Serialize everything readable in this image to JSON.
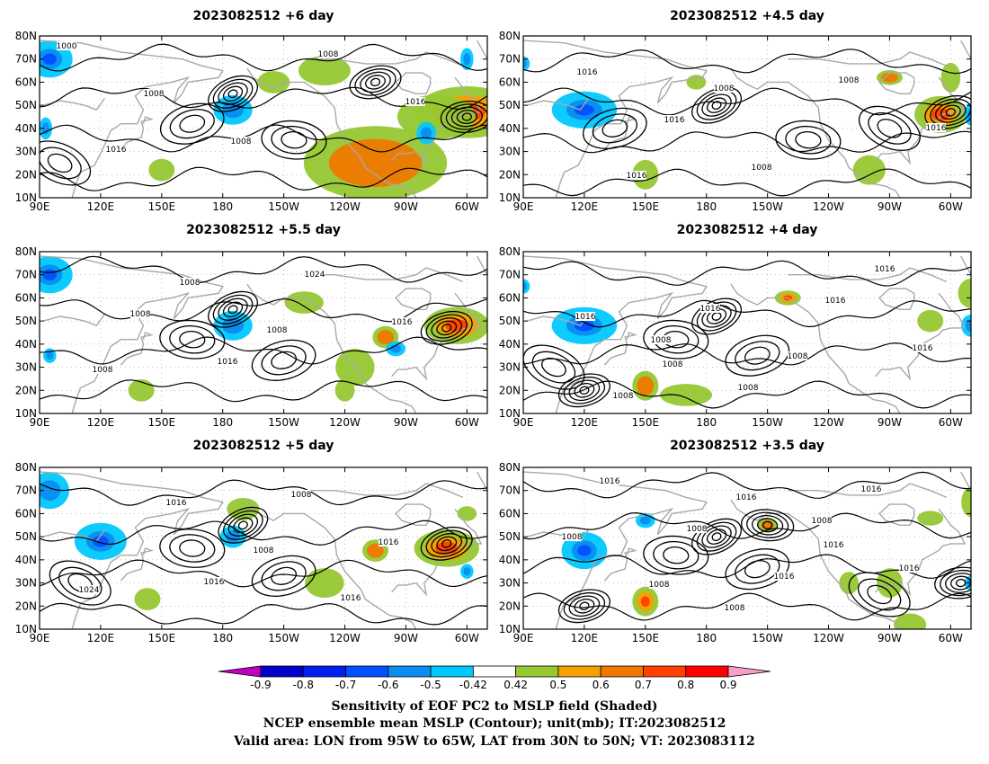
{
  "panels": [
    {
      "title": "2023082512 +6 day",
      "contour_labels": [
        "1000",
        "1008",
        "1008",
        "1008",
        "1016",
        "1016"
      ],
      "warm": [
        [
          -60,
          47,
          16,
          7
        ],
        [
          -105,
          25,
          22,
          10
        ],
        [
          -75,
          45,
          12,
          6
        ],
        [
          -130,
          65,
          8,
          4
        ],
        [
          -155,
          60,
          5,
          3
        ],
        [
          150,
          22,
          4,
          3
        ]
      ],
      "cold": [
        [
          95,
          70,
          7,
          5
        ],
        [
          -175,
          48,
          6,
          4
        ],
        [
          -80,
          38,
          3,
          3
        ],
        [
          -60,
          70,
          2,
          3
        ],
        [
          93,
          40,
          2,
          3
        ]
      ],
      "highs": [
        [
          165,
          42
        ],
        [
          -145,
          35
        ],
        [
          100,
          25
        ]
      ],
      "lows": [
        [
          -175,
          55
        ],
        [
          -105,
          60
        ],
        [
          -60,
          45
        ]
      ]
    },
    {
      "title": "2023082512 +4.5 day",
      "contour_labels": [
        "1016",
        "1016",
        "1008",
        "1008",
        "1016",
        "1016",
        "1008"
      ],
      "warm": [
        [
          -65,
          46,
          8,
          5
        ],
        [
          -90,
          62,
          4,
          2
        ],
        [
          175,
          60,
          3,
          2
        ],
        [
          150,
          20,
          4,
          4
        ],
        [
          -100,
          22,
          5,
          4
        ],
        [
          -60,
          62,
          3,
          4
        ]
      ],
      "cold": [
        [
          120,
          48,
          10,
          5
        ],
        [
          90,
          68,
          2,
          2
        ],
        [
          -50,
          46,
          2,
          3
        ]
      ],
      "highs": [
        [
          135,
          40
        ],
        [
          -130,
          35
        ],
        [
          -90,
          40
        ]
      ],
      "lows": [
        [
          -175,
          50
        ],
        [
          -60,
          47
        ]
      ]
    },
    {
      "title": "2023082512 +5.5 day",
      "contour_labels": [
        "1008",
        "1016",
        "1024",
        "1016",
        "1008",
        "1008",
        "1008"
      ],
      "warm": [
        [
          -65,
          48,
          10,
          5
        ],
        [
          -100,
          43,
          4,
          3
        ],
        [
          -115,
          30,
          6,
          5
        ],
        [
          -120,
          20,
          3,
          3
        ],
        [
          -140,
          58,
          6,
          3
        ],
        [
          140,
          20,
          4,
          3
        ]
      ],
      "cold": [
        [
          95,
          70,
          7,
          5
        ],
        [
          -175,
          48,
          6,
          4
        ],
        [
          -95,
          38,
          3,
          2
        ],
        [
          95,
          35,
          2,
          2
        ]
      ],
      "highs": [
        [
          -150,
          33
        ],
        [
          165,
          42
        ]
      ],
      "lows": [
        [
          -175,
          55
        ],
        [
          -70,
          47
        ]
      ]
    },
    {
      "title": "2023082512 +4 day",
      "contour_labels": [
        "1008",
        "1008",
        "1016",
        "1016",
        "1008",
        "1016",
        "1008",
        "1016",
        "1016",
        "1008"
      ],
      "warm": [
        [
          -140,
          60,
          4,
          2
        ],
        [
          150,
          22,
          4,
          4
        ],
        [
          170,
          18,
          8,
          3
        ],
        [
          -70,
          50,
          4,
          3
        ],
        [
          -50,
          62,
          4,
          4
        ]
      ],
      "cold": [
        [
          120,
          48,
          10,
          5
        ],
        [
          -50,
          48,
          3,
          3
        ],
        [
          90,
          65,
          2,
          2
        ]
      ],
      "highs": [
        [
          -155,
          35
        ],
        [
          165,
          42
        ],
        [
          105,
          30
        ]
      ],
      "lows": [
        [
          -175,
          52
        ],
        [
          120,
          20
        ]
      ]
    },
    {
      "title": "2023082512 +5 day",
      "contour_labels": [
        "1016",
        "1008",
        "1016",
        "1024",
        "1016",
        "1008",
        "1016"
      ],
      "warm": [
        [
          -70,
          45,
          10,
          5
        ],
        [
          -105,
          44,
          4,
          3
        ],
        [
          -130,
          30,
          6,
          4
        ],
        [
          -170,
          62,
          5,
          3
        ],
        [
          143,
          23,
          4,
          3
        ],
        [
          -60,
          60,
          3,
          2
        ]
      ],
      "cold": [
        [
          120,
          48,
          8,
          5
        ],
        [
          95,
          70,
          6,
          5
        ],
        [
          -175,
          50,
          4,
          3
        ],
        [
          -60,
          35,
          2,
          2
        ]
      ],
      "highs": [
        [
          -150,
          33
        ],
        [
          165,
          45
        ],
        [
          110,
          30
        ]
      ],
      "lows": [
        [
          -170,
          55
        ],
        [
          -70,
          47
        ]
      ]
    },
    {
      "title": "2023082512 +3.5 day",
      "contour_labels": [
        "1008",
        "1008",
        "1016",
        "1016",
        "1008",
        "1016",
        "1016",
        "1008",
        "1008",
        "1016",
        "1016"
      ],
      "warm": [
        [
          150,
          22,
          4,
          4
        ],
        [
          -150,
          55,
          3,
          2
        ],
        [
          -110,
          30,
          3,
          3
        ],
        [
          -90,
          30,
          4,
          4
        ],
        [
          -80,
          12,
          5,
          3
        ],
        [
          -50,
          65,
          3,
          4
        ],
        [
          -70,
          58,
          4,
          2
        ]
      ],
      "cold": [
        [
          120,
          44,
          7,
          5
        ],
        [
          150,
          57,
          3,
          2
        ],
        [
          -50,
          30,
          2,
          2
        ]
      ],
      "highs": [
        [
          -155,
          36
        ],
        [
          165,
          42
        ],
        [
          -95,
          25
        ]
      ],
      "lows": [
        [
          -175,
          50
        ],
        [
          120,
          20
        ],
        [
          -55,
          30
        ],
        [
          -150,
          55
        ]
      ]
    }
  ],
  "axes": {
    "lat_ticks": [
      "80N",
      "70N",
      "60N",
      "50N",
      "40N",
      "30N",
      "20N",
      "10N"
    ],
    "lon_ticks": [
      "90E",
      "120E",
      "150E",
      "180",
      "150W",
      "120W",
      "90W",
      "60W"
    ],
    "lon_range": [
      90,
      310
    ],
    "lat_range": [
      10,
      80
    ]
  },
  "colorbar": {
    "labels": [
      "-0.9",
      "-0.8",
      "-0.7",
      "-0.6",
      "-0.5",
      "-0.42",
      "0.42",
      "0.5",
      "0.6",
      "0.7",
      "0.8",
      "0.9"
    ],
    "colors": [
      "#c000c0",
      "#0000c8",
      "#0020f0",
      "#0050ff",
      "#0a8cf0",
      "#00c8ff",
      "#ffffff",
      "#96c832",
      "#f5a000",
      "#f07800",
      "#ff4000",
      "#ff0000",
      "#f5a0c8"
    ]
  },
  "footer": {
    "line1": "Sensitivity of EOF PC2 to MSLP field (Shaded)",
    "line2": "NCEP ensemble mean MSLP (Contour); unit(mb); IT:2023082512",
    "line3": "Valid area: LON from 95W to 65W, LAT from 30N to 50N; VT: 2023083112"
  }
}
